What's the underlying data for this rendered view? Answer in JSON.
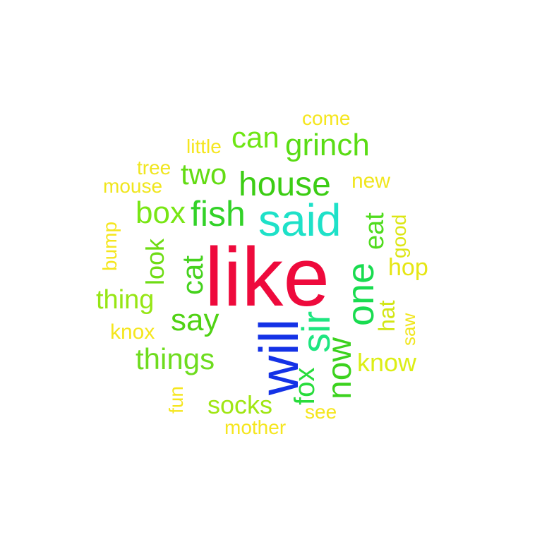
{
  "words": [
    {
      "text": "like",
      "color": "#ee0a3c",
      "rotated": false
    },
    {
      "text": "will",
      "color": "#1432e6",
      "rotated": true
    },
    {
      "text": "said",
      "color": "#1ee1c8",
      "rotated": false
    },
    {
      "text": "sir",
      "color": "#1ee680",
      "rotated": true
    },
    {
      "text": "one",
      "color": "#19dc50",
      "rotated": true
    },
    {
      "text": "house",
      "color": "#3ccd14",
      "rotated": false
    },
    {
      "text": "fish",
      "color": "#32d228",
      "rotated": false
    },
    {
      "text": "grinch",
      "color": "#5adc14",
      "rotated": false
    },
    {
      "text": "now",
      "color": "#3cd21e",
      "rotated": true
    },
    {
      "text": "fox",
      "color": "#28dc3c",
      "rotated": true
    },
    {
      "text": "two",
      "color": "#64dc14",
      "rotated": false
    },
    {
      "text": "can",
      "color": "#6ee614",
      "rotated": false
    },
    {
      "text": "box",
      "color": "#78e614",
      "rotated": false
    },
    {
      "text": "cat",
      "color": "#46d21e",
      "rotated": true
    },
    {
      "text": "say",
      "color": "#50d214",
      "rotated": false
    },
    {
      "text": "look",
      "color": "#6edc14",
      "rotated": true
    },
    {
      "text": "eat",
      "color": "#50dc1e",
      "rotated": true
    },
    {
      "text": "things",
      "color": "#6edc1e",
      "rotated": false
    },
    {
      "text": "thing",
      "color": "#96e614",
      "rotated": false
    },
    {
      "text": "socks",
      "color": "#a0e614",
      "rotated": false
    },
    {
      "text": "know",
      "color": "#dcee14",
      "rotated": false
    },
    {
      "text": "hat",
      "color": "#d2e614",
      "rotated": true
    },
    {
      "text": "hop",
      "color": "#e6e614",
      "rotated": false
    },
    {
      "text": "good",
      "color": "#dce614",
      "rotated": true
    },
    {
      "text": "new",
      "color": "#f0e61e",
      "rotated": false
    },
    {
      "text": "saw",
      "color": "#f0e61e",
      "rotated": true
    },
    {
      "text": "mouse",
      "color": "#f0e61e",
      "rotated": false
    },
    {
      "text": "tree",
      "color": "#f0e61e",
      "rotated": false
    },
    {
      "text": "little",
      "color": "#f5e61e",
      "rotated": false
    },
    {
      "text": "come",
      "color": "#f5e61e",
      "rotated": false
    },
    {
      "text": "bump",
      "color": "#f5e61e",
      "rotated": true
    },
    {
      "text": "knox",
      "color": "#f5e61e",
      "rotated": false
    },
    {
      "text": "fun",
      "color": "#f5e61e",
      "rotated": true
    },
    {
      "text": "see",
      "color": "#f5e61e",
      "rotated": false
    },
    {
      "text": "mother",
      "color": "#f5e61e",
      "rotated": false
    }
  ]
}
